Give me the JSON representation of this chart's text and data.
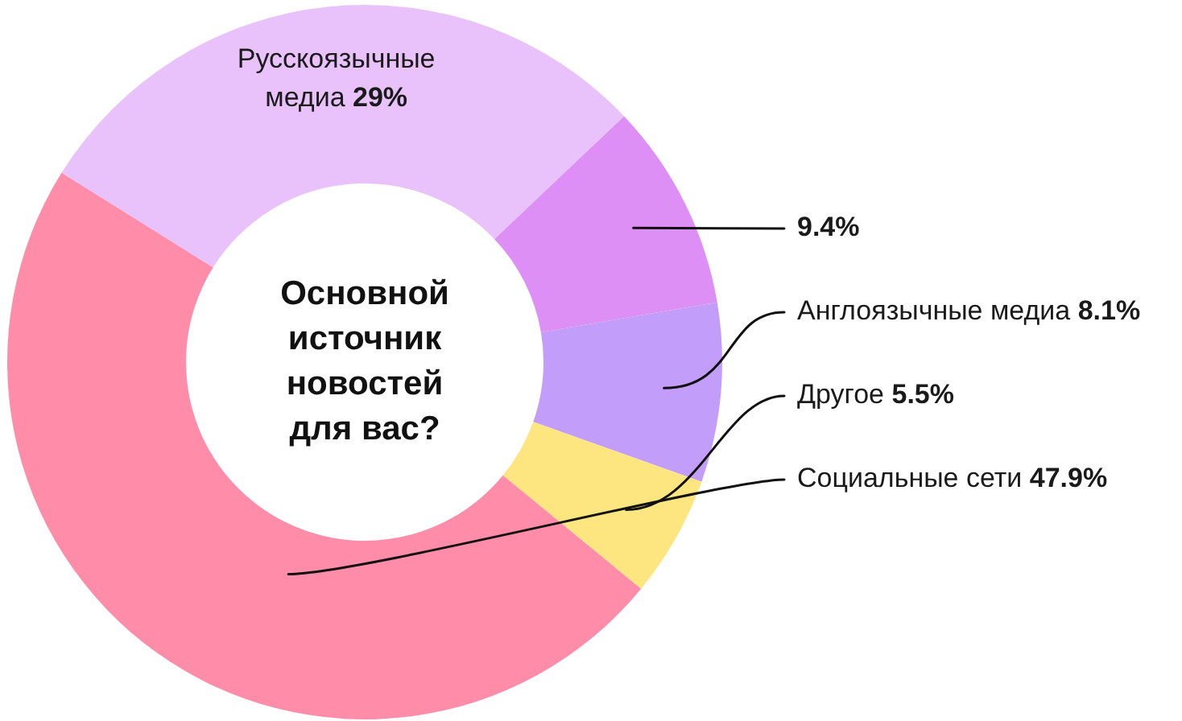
{
  "chart_data": {
    "type": "donut",
    "title": "Основной источник новостей для вас?",
    "categories": [
      "Русскоязычные медиа",
      null,
      "Англоязычные медиа",
      "Другое",
      "Социальные сети"
    ],
    "values": [
      29,
      9.4,
      8.1,
      5.5,
      47.9
    ],
    "colors": [
      "#e9c2fc",
      "#dd8ff5",
      "#c29dfa",
      "#fde680",
      "#ff8ca8"
    ],
    "value_labels": [
      "29%",
      "9.4%",
      "8.1%",
      "5.5%",
      "47.9%"
    ],
    "legend": false
  }
}
